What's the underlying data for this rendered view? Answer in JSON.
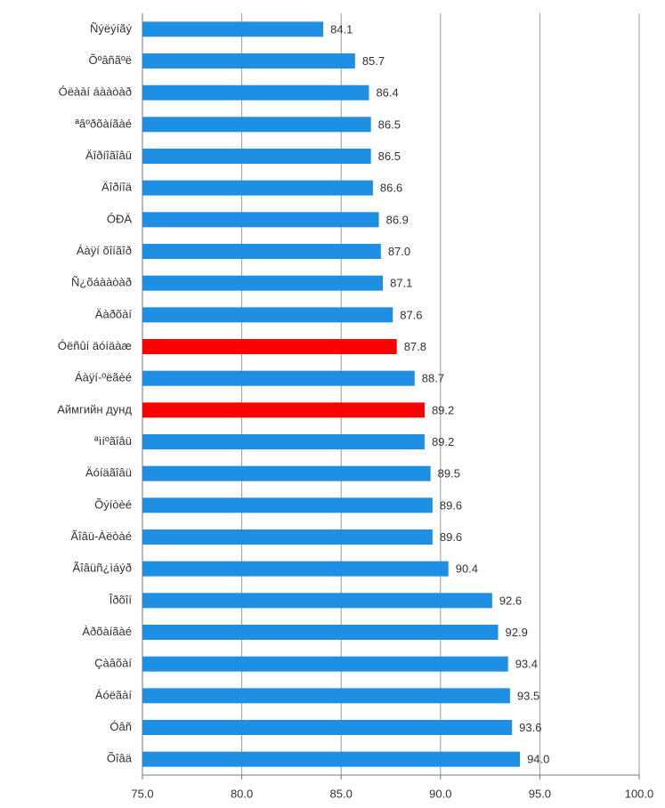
{
  "chart_data": {
    "type": "hbar",
    "categories": [
      "Ñýëýíãý",
      "Õºâñãºë",
      "Óëààí áààòàð",
      "ªâºðõàíãàé",
      "Äîðíîãîâü",
      "Äîðíîä",
      "ÓÐÄ",
      "Áàÿí õîíãîð",
      "Ñ¿õáààòàð",
      "Äàðõàí",
      "Óëñûí äóíäàæ",
      "Áàÿí-ºëãèé",
      "Аймгийн дунд",
      "ªìíºãîâü",
      "Äóíäãîâü",
      "Õýíòèé",
      "Ãîâü-Àëòàé",
      "Ãîâüñ¿ìáýð",
      "Îðõîí",
      "Àðõàíãàé",
      "Çàâõàí",
      "Áóëãàí",
      "Óâñ",
      "Õîâä"
    ],
    "values": [
      84.1,
      85.7,
      86.4,
      86.5,
      86.5,
      86.6,
      86.9,
      87.0,
      87.1,
      87.6,
      87.8,
      88.7,
      89.2,
      89.2,
      89.5,
      89.6,
      89.6,
      90.4,
      92.6,
      92.9,
      93.4,
      93.5,
      93.6,
      94.0
    ],
    "value_labels": [
      "84.1",
      "85.7",
      "86.4",
      "86.5",
      "86.5",
      "86.6",
      "86.9",
      "87.0",
      "87.1",
      "87.6",
      "87.8",
      "88.7",
      "89.2",
      "89.2",
      "89.5",
      "89.6",
      "89.6",
      "90.4",
      "92.6",
      "92.9",
      "93.4",
      "93.5",
      "93.6",
      "94.0"
    ],
    "colors": [
      "#1f8fe3",
      "#1f8fe3",
      "#1f8fe3",
      "#1f8fe3",
      "#1f8fe3",
      "#1f8fe3",
      "#1f8fe3",
      "#1f8fe3",
      "#1f8fe3",
      "#1f8fe3",
      "#ff0000",
      "#1f8fe3",
      "#ff0000",
      "#1f8fe3",
      "#1f8fe3",
      "#1f8fe3",
      "#1f8fe3",
      "#1f8fe3",
      "#1f8fe3",
      "#1f8fe3",
      "#1f8fe3",
      "#1f8fe3",
      "#1f8fe3",
      "#1f8fe3"
    ],
    "xlim": [
      75,
      100
    ],
    "xticks": [
      {
        "value": 75,
        "label": "75.0"
      },
      {
        "value": 80,
        "label": "80.0"
      },
      {
        "value": 85,
        "label": "85.0"
      },
      {
        "value": 90,
        "label": "90.0"
      },
      {
        "value": 95,
        "label": "95.0"
      },
      {
        "value": 100,
        "label": "100.0"
      }
    ],
    "grid": true
  }
}
